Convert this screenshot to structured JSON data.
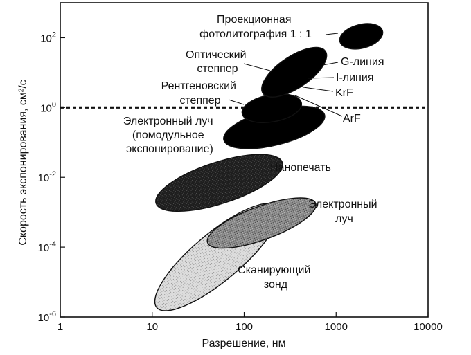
{
  "chart_data": {
    "type": "scatter",
    "xlabel": "Разрешение, нм",
    "ylabel": "Скорость экспонирования, см²/с",
    "xscale": "log",
    "yscale": "log",
    "xlim": [
      1,
      10000
    ],
    "ylim": [
      1e-06,
      1000
    ],
    "x_ticks": [
      {
        "value": 1,
        "label": "1"
      },
      {
        "value": 10,
        "label": "10"
      },
      {
        "value": 100,
        "label": "100"
      },
      {
        "value": 1000,
        "label": "1000"
      },
      {
        "value": 10000,
        "label": "10000"
      }
    ],
    "y_ticks": [
      {
        "value": 1e-06,
        "base": "10",
        "exp": "-6"
      },
      {
        "value": 0.0001,
        "base": "10",
        "exp": "-4"
      },
      {
        "value": 0.01,
        "base": "10",
        "exp": "-2"
      },
      {
        "value": 1,
        "base": "10",
        "exp": "0"
      },
      {
        "value": 100,
        "base": "10",
        "exp": "2"
      }
    ],
    "reference_line": {
      "y": 1,
      "style": "dashed"
    },
    "regions": [
      {
        "name": "Проекционная фотолитография 1 : 1",
        "x_range": [
          1100,
          3200
        ],
        "y_range": [
          40,
          300
        ],
        "fill": "#000000"
      },
      {
        "name": "Оптический степпер",
        "x_range": [
          170,
          720
        ],
        "y_range": [
          1.5,
          70
        ],
        "fill": "#000000"
      },
      {
        "name": "Рентгеновский степпер",
        "x_range": [
          95,
          420
        ],
        "y_range": [
          0.3,
          3
        ],
        "fill": "#000000"
      },
      {
        "name": "Электронный луч (помодульное экспонирование)",
        "x_range": [
          60,
          750
        ],
        "y_range": [
          0.06,
          1.2
        ],
        "fill": "#000000"
      },
      {
        "name": "Нанопечать",
        "x_range": [
          11,
          260
        ],
        "y_range": [
          0.0012,
          0.04
        ],
        "fill": "#262626"
      },
      {
        "name": "Электронный луч",
        "x_range": [
          40,
          600
        ],
        "y_range": [
          0.00012,
          0.002
        ],
        "fill": "#7f7f7f"
      },
      {
        "name": "Сканирующий зонд",
        "x_range": [
          8,
          320
        ],
        "y_range": [
          3e-06,
          0.0009
        ],
        "fill": "#d2d2d2"
      }
    ],
    "labels": [
      {
        "lines": [
          "Проекционная",
          "фотолитография 1 : 1"
        ]
      },
      {
        "lines": [
          "Оптический",
          "степпер"
        ]
      },
      {
        "lines": [
          "Рентгеновский",
          "степпер"
        ]
      },
      {
        "lines": [
          "Электронный луч",
          "(помодульное",
          "экспонирование)"
        ]
      },
      {
        "lines": [
          "Нанопечать"
        ]
      },
      {
        "lines": [
          "Электронный",
          "луч"
        ]
      },
      {
        "lines": [
          "Сканирующий",
          "зонд"
        ]
      },
      {
        "lines": [
          "G-линия"
        ]
      },
      {
        "lines": [
          "I-линия"
        ]
      },
      {
        "lines": [
          "KrF"
        ]
      },
      {
        "lines": [
          "ArF"
        ]
      }
    ],
    "grid": false,
    "legend": "none"
  }
}
